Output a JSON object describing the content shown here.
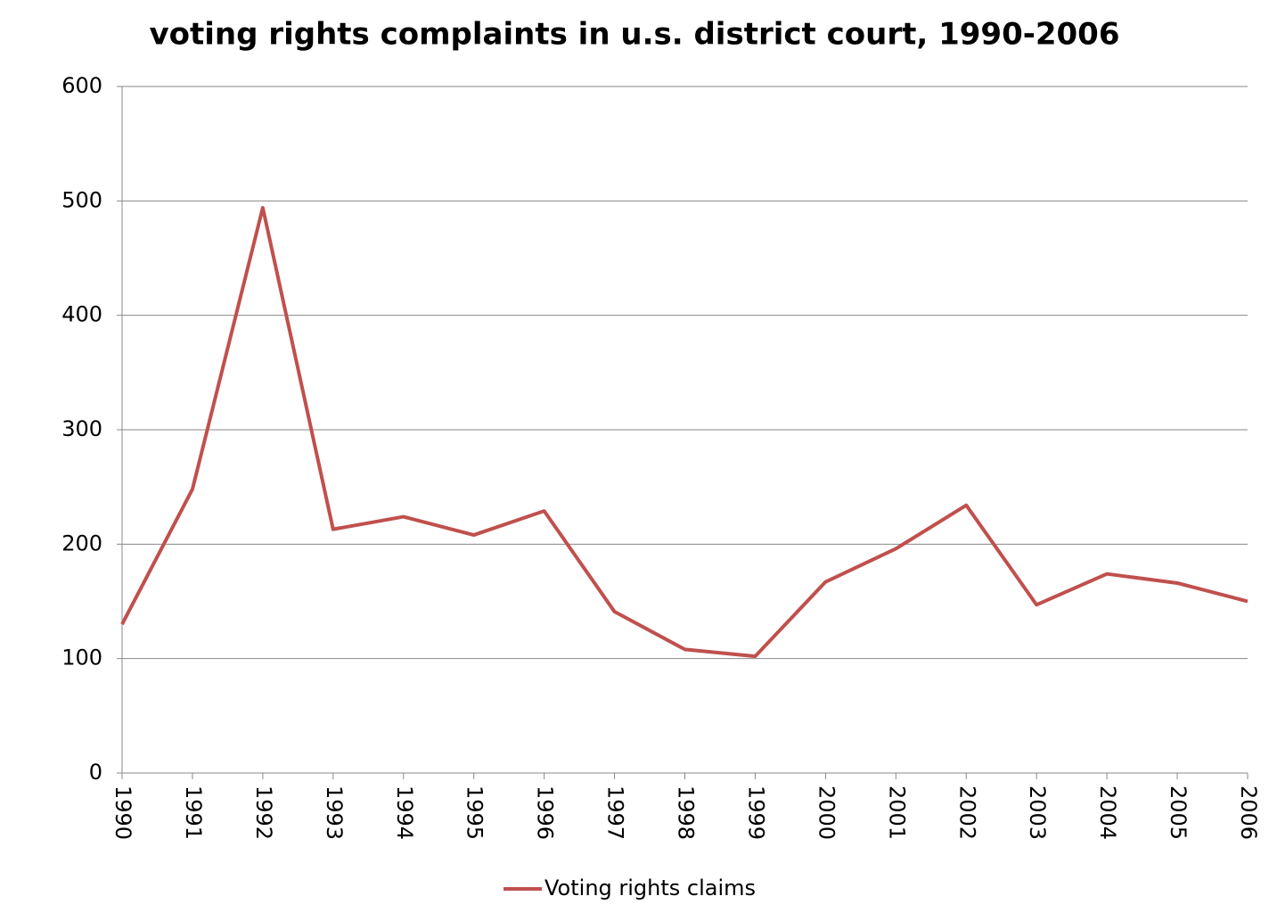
{
  "chart_data": {
    "type": "line",
    "title": "voting rights complaints in u.s. district court, 1990-2006",
    "categories": [
      "1990",
      "1991",
      "1992",
      "1993",
      "1994",
      "1995",
      "1996",
      "1997",
      "1998",
      "1999",
      "2000",
      "2001",
      "2002",
      "2003",
      "2004",
      "2005",
      "2006"
    ],
    "series": [
      {
        "name": "Voting rights claims",
        "color": "#c0504d",
        "values": [
          130,
          248,
          494,
          213,
          224,
          208,
          229,
          141,
          108,
          102,
          167,
          196,
          234,
          147,
          174,
          166,
          150
        ]
      }
    ],
    "ylim": [
      0,
      600
    ],
    "yticks": [
      0,
      100,
      200,
      300,
      400,
      500,
      600
    ],
    "grid": true,
    "legend": "bottom"
  }
}
